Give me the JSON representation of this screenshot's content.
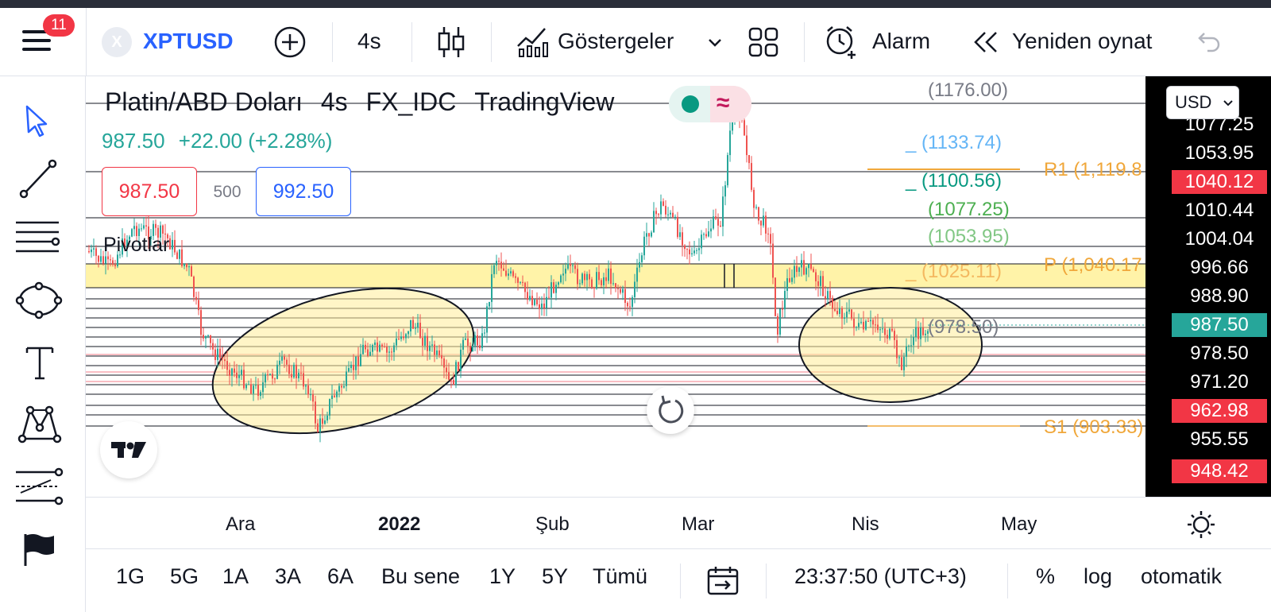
{
  "toolbar": {
    "menu_badge": "11",
    "symbol_badge": "X",
    "symbol": "XPTUSD",
    "interval": "4s",
    "indicators_label": "Göstergeler",
    "alert_label": "Alarm",
    "replay_label": "Yeniden oynat"
  },
  "legend": {
    "title_parts": [
      "Platin/ABD Doları",
      "4s",
      "FX_IDC",
      "TradingView"
    ],
    "price": "987.50",
    "change": "+22.00 (+2.28%)",
    "bid": "987.50",
    "spread": "500",
    "ask": "992.50",
    "indicator_name": "Pivotlar",
    "status_tilde": "≈"
  },
  "currency": "USD",
  "fib_labels": [
    {
      "text": "(1176.00)",
      "color": "#787b86"
    },
    {
      "text": "_ (1133.74)",
      "color": "#64b5f6"
    },
    {
      "text": "_ (1100.56)",
      "color": "#089981"
    },
    {
      "text": "(1077.25)",
      "color": "#4caf50"
    },
    {
      "text": "(1053.95)",
      "color": "#81c784"
    },
    {
      "text": "_ (1025.11)",
      "color": "#f4b860"
    },
    {
      "text": "(978.50)",
      "color": "#787b86"
    }
  ],
  "pivot_labels": [
    {
      "text": "R1 (1,119.8",
      "color": "#f0a73a"
    },
    {
      "text": "P (1,040.17",
      "color": "#f0a73a"
    },
    {
      "text": "S1 (903.33)",
      "color": "#f0a73a"
    }
  ],
  "price_axis": [
    {
      "text": "1077.25",
      "bg": "#000000"
    },
    {
      "text": "1053.95",
      "bg": "#000000"
    },
    {
      "text": "1040.12",
      "bg": "#f23645"
    },
    {
      "text": "1010.44",
      "bg": "#000000"
    },
    {
      "text": "1004.04",
      "bg": "#000000"
    },
    {
      "text": "996.66",
      "bg": "#000000"
    },
    {
      "text": "988.90",
      "bg": "#000000"
    },
    {
      "text": "987.50",
      "bg": "#26a69a"
    },
    {
      "text": "978.50",
      "bg": "#000000"
    },
    {
      "text": "971.20",
      "bg": "#000000"
    },
    {
      "text": "962.98",
      "bg": "#f23645"
    },
    {
      "text": "955.55",
      "bg": "#000000"
    },
    {
      "text": "948.42",
      "bg": "#f23645"
    }
  ],
  "time_axis": [
    {
      "text": "Ara",
      "bold": false
    },
    {
      "text": "2022",
      "bold": true
    },
    {
      "text": "Şub",
      "bold": false
    },
    {
      "text": "Mar",
      "bold": false
    },
    {
      "text": "Nis",
      "bold": false
    },
    {
      "text": "May",
      "bold": false
    }
  ],
  "ranges": [
    "1G",
    "5G",
    "1A",
    "3A",
    "6A",
    "Bu sene",
    "1Y",
    "5Y",
    "Tümü"
  ],
  "clock": "23:37:50 (UTC+3)",
  "percent_label": "%",
  "log_label": "log",
  "auto_label": "otomatik",
  "colors": {
    "up": "#26a69a",
    "down": "#ef5350",
    "accent": "#2962ff",
    "highlight": "#fff3a8"
  }
}
